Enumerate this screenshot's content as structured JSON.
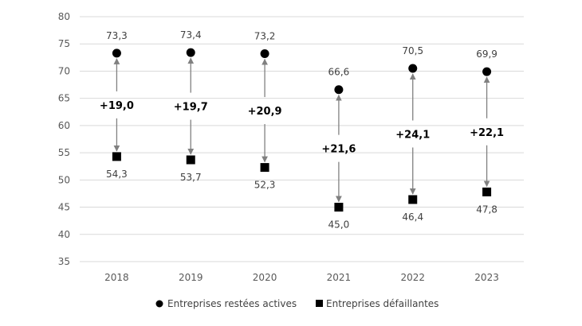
{
  "chart_data": {
    "type": "scatter",
    "title": "",
    "xlabel": "",
    "ylabel": "",
    "ylim": [
      35,
      80
    ],
    "yticks": [
      35,
      40,
      45,
      50,
      55,
      60,
      65,
      70,
      75,
      80
    ],
    "grid": true,
    "legend_position": "bottom",
    "categories": [
      "2018",
      "2019",
      "2020",
      "2021",
      "2022",
      "2023"
    ],
    "series": [
      {
        "name": "Entreprises restées actives",
        "marker": "circle",
        "values": [
          73.3,
          73.4,
          73.2,
          66.6,
          70.5,
          69.9
        ],
        "labels": [
          "73,3",
          "73,4",
          "73,2",
          "66,6",
          "70,5",
          "69,9"
        ]
      },
      {
        "name": "Entreprises défaillantes",
        "marker": "square",
        "values": [
          54.3,
          53.7,
          52.3,
          45.0,
          46.4,
          47.8
        ],
        "labels": [
          "54,3",
          "53,7",
          "52,3",
          "45,0",
          "46,4",
          "47,8"
        ]
      }
    ],
    "gaps": [
      "+19,0",
      "+19,7",
      "+20,9",
      "+21,6",
      "+24,1",
      "+22,1"
    ],
    "gap_values": [
      19.0,
      19.7,
      20.9,
      21.6,
      24.1,
      22.1
    ]
  }
}
